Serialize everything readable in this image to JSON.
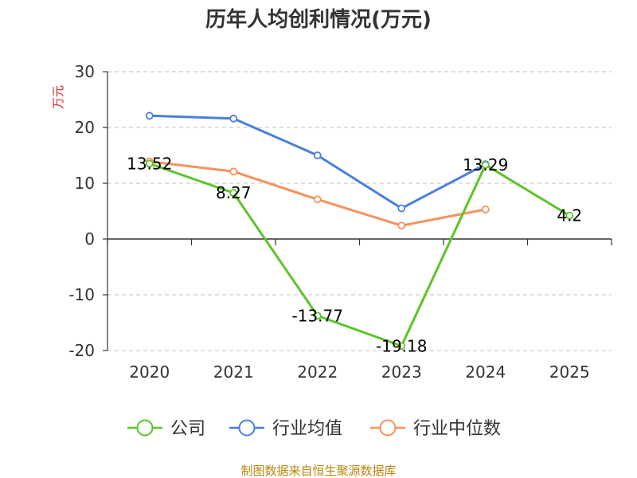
{
  "chart_data": {
    "type": "line",
    "title": "历年人均创利情况(万元)",
    "ylabel": "万元",
    "xlabel": "",
    "categories": [
      "2020",
      "2021",
      "2022",
      "2023",
      "2024",
      "2025"
    ],
    "ylim": [
      -20,
      30
    ],
    "yticks": [
      30,
      20,
      10,
      0,
      -10,
      -20
    ],
    "grid": true,
    "legend_position": "bottom-center",
    "series": [
      {
        "name": "公司",
        "color": "#5ac528",
        "values": [
          13.52,
          8.27,
          -13.77,
          -19.18,
          13.29,
          4.2
        ],
        "labels": [
          "13.52",
          "8.27",
          "-13.77",
          "-19.18",
          "13.29",
          "4.2"
        ]
      },
      {
        "name": "行业均值",
        "color": "#4a7fdc",
        "values": [
          22.1,
          21.6,
          15.0,
          5.5,
          13.4,
          null
        ]
      },
      {
        "name": "行业中位数",
        "color": "#f5925e",
        "values": [
          13.9,
          12.1,
          7.1,
          2.4,
          5.3,
          null
        ]
      }
    ]
  },
  "footer": "制图数据来自恒生聚源数据库"
}
